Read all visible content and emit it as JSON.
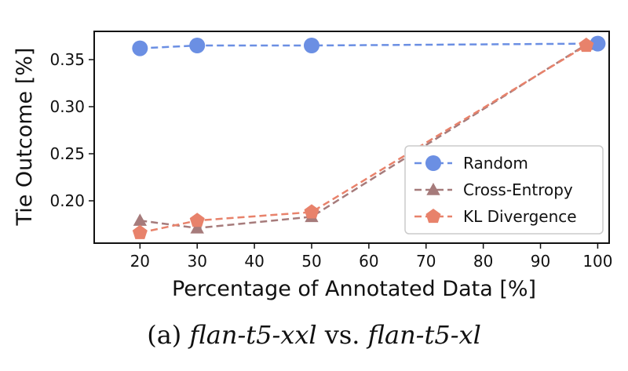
{
  "chart_data": {
    "type": "line",
    "title": "",
    "xlabel": "Percentage of Annotated Data [%]",
    "ylabel": "Tie Outcome [%]",
    "xlim": [
      12,
      102
    ],
    "ylim": [
      0.155,
      0.38
    ],
    "xticks": [
      20,
      30,
      40,
      50,
      60,
      70,
      80,
      90,
      100
    ],
    "yticks": [
      0.2,
      0.25,
      0.3,
      0.35
    ],
    "ytick_labels": [
      "0.20",
      "0.25",
      "0.30",
      "0.35"
    ],
    "grid": false,
    "legend_position": "center-right",
    "series": [
      {
        "name": "Random",
        "marker": "circle",
        "color": "#6b8fe3",
        "x": [
          20,
          30,
          50,
          100
        ],
        "y": [
          0.362,
          0.365,
          0.365,
          0.367
        ]
      },
      {
        "name": "Cross-Entropy",
        "marker": "triangle",
        "color": "#a67b7b",
        "x": [
          20,
          30,
          50,
          98
        ],
        "y": [
          0.179,
          0.171,
          0.183,
          0.366
        ]
      },
      {
        "name": "KL Divergence",
        "marker": "pentagon",
        "color": "#e8826b",
        "x": [
          20,
          30,
          50,
          98
        ],
        "y": [
          0.166,
          0.179,
          0.188,
          0.365
        ]
      }
    ]
  },
  "caption": {
    "prefix": "(a) ",
    "model_a": "flan-t5-xxl",
    "vs": " vs. ",
    "model_b": "flan-t5-xl"
  }
}
